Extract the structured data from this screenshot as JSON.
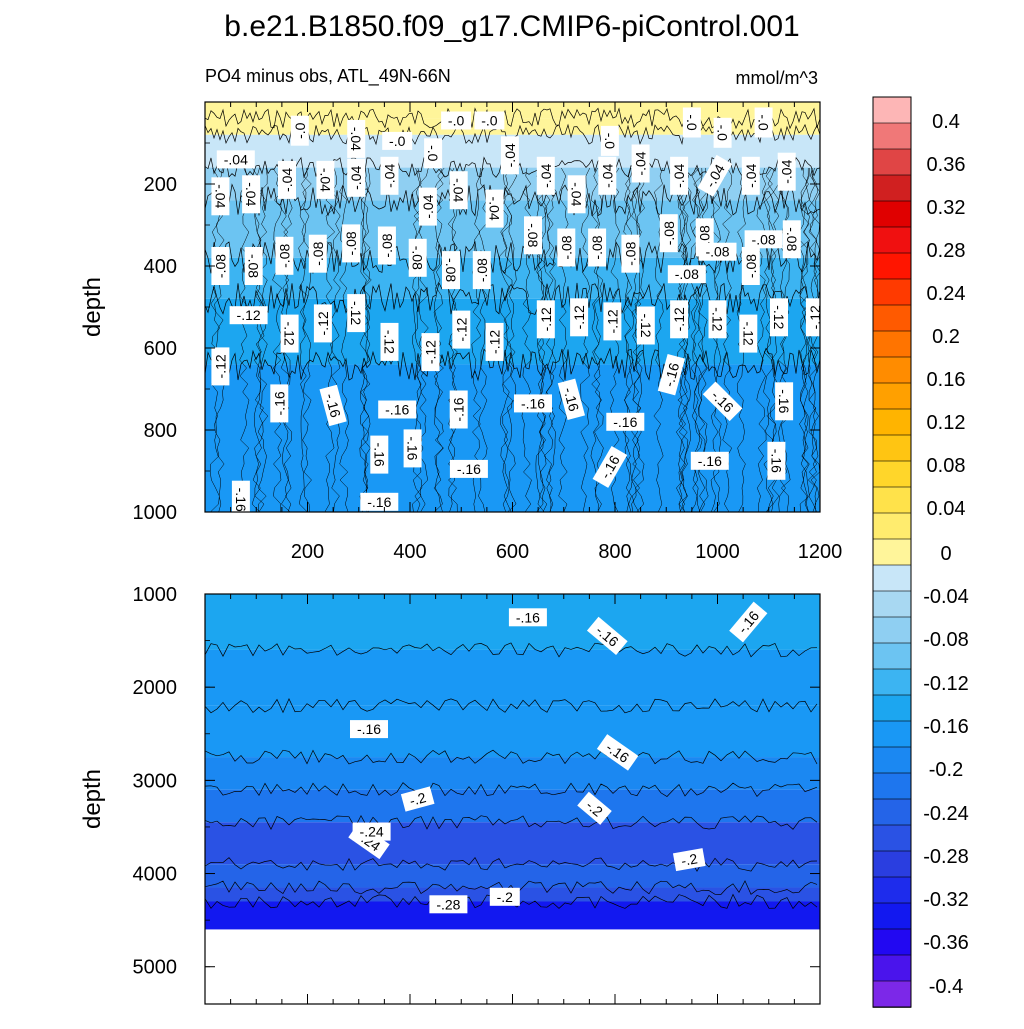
{
  "title": "b.e21.B1850.f09_g17.CMIP6-piControl.001",
  "chart_data": [
    {
      "type": "heatmap",
      "subtitle": "PO4 minus obs, ATL_49N-66N",
      "units": "mmol/m^3",
      "ylabel": "depth",
      "xlabel": "",
      "xlim": [
        0,
        1200
      ],
      "ylim": [
        1000,
        0
      ],
      "xticks": [
        "200",
        "400",
        "600",
        "800",
        "1000",
        "1200"
      ],
      "yticks": [
        "200",
        "400",
        "600",
        "800",
        "1000"
      ],
      "depth_bands": [
        {
          "top": 0,
          "bottom": 40,
          "value": 0.02
        },
        {
          "top": 40,
          "bottom": 80,
          "value": 0.0
        },
        {
          "top": 80,
          "bottom": 160,
          "value": -0.02
        },
        {
          "top": 160,
          "bottom": 240,
          "value": -0.05
        },
        {
          "top": 240,
          "bottom": 380,
          "value": -0.08
        },
        {
          "top": 380,
          "bottom": 480,
          "value": -0.1
        },
        {
          "top": 480,
          "bottom": 640,
          "value": -0.13
        },
        {
          "top": 640,
          "bottom": 1000,
          "value": -0.16
        }
      ],
      "contour_labels": [
        {
          "text": "-.0",
          "x": 490,
          "y": 45,
          "rot": 0
        },
        {
          "text": "-.0",
          "x": 555,
          "y": 45,
          "rot": 0
        },
        {
          "text": "-.0",
          "x": 185,
          "y": 70,
          "rot": -90
        },
        {
          "text": "-.04",
          "x": 295,
          "y": 90,
          "rot": 90
        },
        {
          "text": "-.0",
          "x": 375,
          "y": 95,
          "rot": 0
        },
        {
          "text": "-.0",
          "x": 445,
          "y": 125,
          "rot": 90
        },
        {
          "text": "-.0",
          "x": 790,
          "y": 95,
          "rot": 90
        },
        {
          "text": "-.0",
          "x": 950,
          "y": 50,
          "rot": 90
        },
        {
          "text": "-.0",
          "x": 1010,
          "y": 75,
          "rot": 90
        },
        {
          "text": "-.0",
          "x": 1090,
          "y": 50,
          "rot": 90
        },
        {
          "text": "-.04",
          "x": 60,
          "y": 140,
          "rot": 0
        },
        {
          "text": "-.04",
          "x": 30,
          "y": 230,
          "rot": 90
        },
        {
          "text": "-.04",
          "x": 90,
          "y": 225,
          "rot": 90
        },
        {
          "text": "-.04",
          "x": 160,
          "y": 190,
          "rot": -90
        },
        {
          "text": "-.04",
          "x": 235,
          "y": 190,
          "rot": 90
        },
        {
          "text": "-.04",
          "x": 295,
          "y": 185,
          "rot": -90
        },
        {
          "text": "-.04",
          "x": 360,
          "y": 180,
          "rot": -90
        },
        {
          "text": "-.04",
          "x": 435,
          "y": 255,
          "rot": -90
        },
        {
          "text": "-.04",
          "x": 495,
          "y": 215,
          "rot": 90
        },
        {
          "text": "-.04",
          "x": 565,
          "y": 260,
          "rot": 90
        },
        {
          "text": "-.04",
          "x": 595,
          "y": 130,
          "rot": -90
        },
        {
          "text": "-.04",
          "x": 665,
          "y": 180,
          "rot": -90
        },
        {
          "text": "-.04",
          "x": 725,
          "y": 225,
          "rot": 90
        },
        {
          "text": "-.04",
          "x": 785,
          "y": 180,
          "rot": -90
        },
        {
          "text": "-.04",
          "x": 850,
          "y": 150,
          "rot": -90
        },
        {
          "text": "-.04",
          "x": 925,
          "y": 180,
          "rot": -90
        },
        {
          "text": "-.04",
          "x": 995,
          "y": 180,
          "rot": -60
        },
        {
          "text": "-.04",
          "x": 1065,
          "y": 180,
          "rot": -90
        },
        {
          "text": "-.04",
          "x": 1135,
          "y": 170,
          "rot": -90
        },
        {
          "text": "-.08",
          "x": 30,
          "y": 400,
          "rot": -90
        },
        {
          "text": "-.08",
          "x": 95,
          "y": 400,
          "rot": 90
        },
        {
          "text": "-.08",
          "x": 155,
          "y": 375,
          "rot": -90
        },
        {
          "text": "-.08",
          "x": 220,
          "y": 370,
          "rot": -90
        },
        {
          "text": "-.08",
          "x": 285,
          "y": 345,
          "rot": -90
        },
        {
          "text": "-.08",
          "x": 355,
          "y": 350,
          "rot": -90
        },
        {
          "text": "-.08",
          "x": 415,
          "y": 380,
          "rot": 90
        },
        {
          "text": "-.08",
          "x": 480,
          "y": 410,
          "rot": 90
        },
        {
          "text": "-.08",
          "x": 540,
          "y": 410,
          "rot": -90
        },
        {
          "text": "-.08",
          "x": 640,
          "y": 325,
          "rot": 90
        },
        {
          "text": "-.08",
          "x": 705,
          "y": 355,
          "rot": -90
        },
        {
          "text": "-.08",
          "x": 765,
          "y": 355,
          "rot": -90
        },
        {
          "text": "-.08",
          "x": 830,
          "y": 370,
          "rot": -90
        },
        {
          "text": "-.08",
          "x": 905,
          "y": 320,
          "rot": -90
        },
        {
          "text": "-.08",
          "x": 975,
          "y": 330,
          "rot": -90
        },
        {
          "text": "-.08",
          "x": 1000,
          "y": 365,
          "rot": 0
        },
        {
          "text": "-.08",
          "x": 940,
          "y": 420,
          "rot": 0
        },
        {
          "text": "-.08",
          "x": 1090,
          "y": 335,
          "rot": 0
        },
        {
          "text": "-.08",
          "x": 1145,
          "y": 335,
          "rot": 90
        },
        {
          "text": "-.08",
          "x": 1065,
          "y": 400,
          "rot": -90
        },
        {
          "text": "-.12",
          "x": 85,
          "y": 520,
          "rot": 0
        },
        {
          "text": "-.12",
          "x": 30,
          "y": 645,
          "rot": -90
        },
        {
          "text": "-.12",
          "x": 165,
          "y": 565,
          "rot": 90
        },
        {
          "text": "-.12",
          "x": 230,
          "y": 540,
          "rot": -90
        },
        {
          "text": "-.12",
          "x": 295,
          "y": 515,
          "rot": 90
        },
        {
          "text": "-.12",
          "x": 360,
          "y": 585,
          "rot": 90
        },
        {
          "text": "-.12",
          "x": 440,
          "y": 610,
          "rot": -90
        },
        {
          "text": "-.12",
          "x": 500,
          "y": 555,
          "rot": -90
        },
        {
          "text": "-.12",
          "x": 565,
          "y": 585,
          "rot": -90
        },
        {
          "text": "-.12",
          "x": 665,
          "y": 530,
          "rot": -90
        },
        {
          "text": "-.12",
          "x": 730,
          "y": 525,
          "rot": -90
        },
        {
          "text": "-.12",
          "x": 795,
          "y": 535,
          "rot": -90
        },
        {
          "text": "-.12",
          "x": 860,
          "y": 545,
          "rot": 90
        },
        {
          "text": "-.12",
          "x": 925,
          "y": 530,
          "rot": -90
        },
        {
          "text": "-.12",
          "x": 1000,
          "y": 530,
          "rot": 90
        },
        {
          "text": "-.12",
          "x": 1060,
          "y": 565,
          "rot": 90
        },
        {
          "text": "-.12",
          "x": 1120,
          "y": 525,
          "rot": 90
        },
        {
          "text": "-.12",
          "x": 1190,
          "y": 525,
          "rot": -90
        },
        {
          "text": "-.16",
          "x": 145,
          "y": 735,
          "rot": -90
        },
        {
          "text": "-.16",
          "x": 250,
          "y": 740,
          "rot": 75
        },
        {
          "text": "-.16",
          "x": 375,
          "y": 750,
          "rot": 0
        },
        {
          "text": "-.16",
          "x": 495,
          "y": 750,
          "rot": -90
        },
        {
          "text": "-.16",
          "x": 640,
          "y": 735,
          "rot": 0
        },
        {
          "text": "-.16",
          "x": 715,
          "y": 725,
          "rot": 75
        },
        {
          "text": "-.16",
          "x": 820,
          "y": 780,
          "rot": 0
        },
        {
          "text": "-.16",
          "x": 910,
          "y": 665,
          "rot": -75
        },
        {
          "text": "-.16",
          "x": 1010,
          "y": 730,
          "rot": 45
        },
        {
          "text": "-.16",
          "x": 1130,
          "y": 730,
          "rot": 90
        },
        {
          "text": "-.16",
          "x": 340,
          "y": 860,
          "rot": 90
        },
        {
          "text": "-.16",
          "x": 405,
          "y": 845,
          "rot": 90
        },
        {
          "text": "-.16",
          "x": 515,
          "y": 895,
          "rot": 0
        },
        {
          "text": "-.16",
          "x": 790,
          "y": 890,
          "rot": -60
        },
        {
          "text": "-.16",
          "x": 985,
          "y": 875,
          "rot": 0
        },
        {
          "text": "-.16",
          "x": 1115,
          "y": 875,
          "rot": 90
        },
        {
          "text": "-.16",
          "x": 70,
          "y": 970,
          "rot": 90
        },
        {
          "text": "-.16",
          "x": 340,
          "y": 975,
          "rot": 0
        }
      ]
    },
    {
      "type": "heatmap",
      "ylabel": "depth",
      "xlabel": "",
      "xlim": [
        0,
        1200
      ],
      "ylim": [
        5400,
        1000
      ],
      "yticks": [
        "1000",
        "2000",
        "3000",
        "4000",
        "5000"
      ],
      "bottom_depth": 4600,
      "depth_bands": [
        {
          "top": 1000,
          "bottom": 1600,
          "value": -0.13
        },
        {
          "top": 1600,
          "bottom": 2200,
          "value": -0.15
        },
        {
          "top": 2200,
          "bottom": 2750,
          "value": -0.165
        },
        {
          "top": 2750,
          "bottom": 3100,
          "value": -0.19
        },
        {
          "top": 3100,
          "bottom": 3450,
          "value": -0.21
        },
        {
          "top": 3450,
          "bottom": 3900,
          "value": -0.24
        },
        {
          "top": 3900,
          "bottom": 4150,
          "value": -0.22
        },
        {
          "top": 4150,
          "bottom": 4300,
          "value": -0.25
        },
        {
          "top": 4300,
          "bottom": 4600,
          "value": -0.33
        }
      ],
      "contour_labels": [
        {
          "text": "-.16",
          "x": 630,
          "y": 1250,
          "rot": 0
        },
        {
          "text": "-.16",
          "x": 785,
          "y": 1450,
          "rot": 40
        },
        {
          "text": "-.16",
          "x": 1060,
          "y": 1300,
          "rot": -50
        },
        {
          "text": "-.16",
          "x": 320,
          "y": 2450,
          "rot": 0
        },
        {
          "text": "-.16",
          "x": 805,
          "y": 2700,
          "rot": 35
        },
        {
          "text": "-.2",
          "x": 415,
          "y": 3200,
          "rot": -15
        },
        {
          "text": "-.2",
          "x": 760,
          "y": 3300,
          "rot": 40
        },
        {
          "text": "-.24",
          "x": 320,
          "y": 3650,
          "rot": 35
        },
        {
          "text": "-.24",
          "x": 325,
          "y": 3550,
          "rot": 0
        },
        {
          "text": "-.2",
          "x": 945,
          "y": 3850,
          "rot": -10
        },
        {
          "text": "-.28",
          "x": 475,
          "y": 4330,
          "rot": 0
        },
        {
          "text": "-.2",
          "x": 585,
          "y": 4250,
          "rot": 0
        }
      ]
    }
  ],
  "colorbar": {
    "levels": [
      "0.4",
      "0.36",
      "0.32",
      "0.28",
      "0.24",
      "0.2",
      "0.16",
      "0.12",
      "0.08",
      "0.04",
      "0",
      "-0.04",
      "-0.08",
      "-0.12",
      "-0.16",
      "-0.2",
      "-0.24",
      "-0.28",
      "-0.32",
      "-0.36",
      "-0.4"
    ],
    "colors": [
      "#fdb6b6",
      "#f07878",
      "#e04545",
      "#d02020",
      "#e00000",
      "#f01010",
      "#ff1500",
      "#ff3a00",
      "#ff5a00",
      "#ff7400",
      "#ff8c00",
      "#ffa000",
      "#ffb400",
      "#ffc512",
      "#ffd62a",
      "#ffe24a",
      "#ffec6e",
      "#fff59a",
      "#c8e6f8",
      "#a8d8f2",
      "#8fcff2",
      "#6cc4f2",
      "#3cb4f2",
      "#1ca6f0",
      "#1998f5",
      "#1b88f2",
      "#1e76ee",
      "#2464e8",
      "#2a52e4",
      "#2a3ee0",
      "#1e2cec",
      "#1218f0",
      "#2208f2",
      "#4a14ec",
      "#7c28e8"
    ]
  }
}
